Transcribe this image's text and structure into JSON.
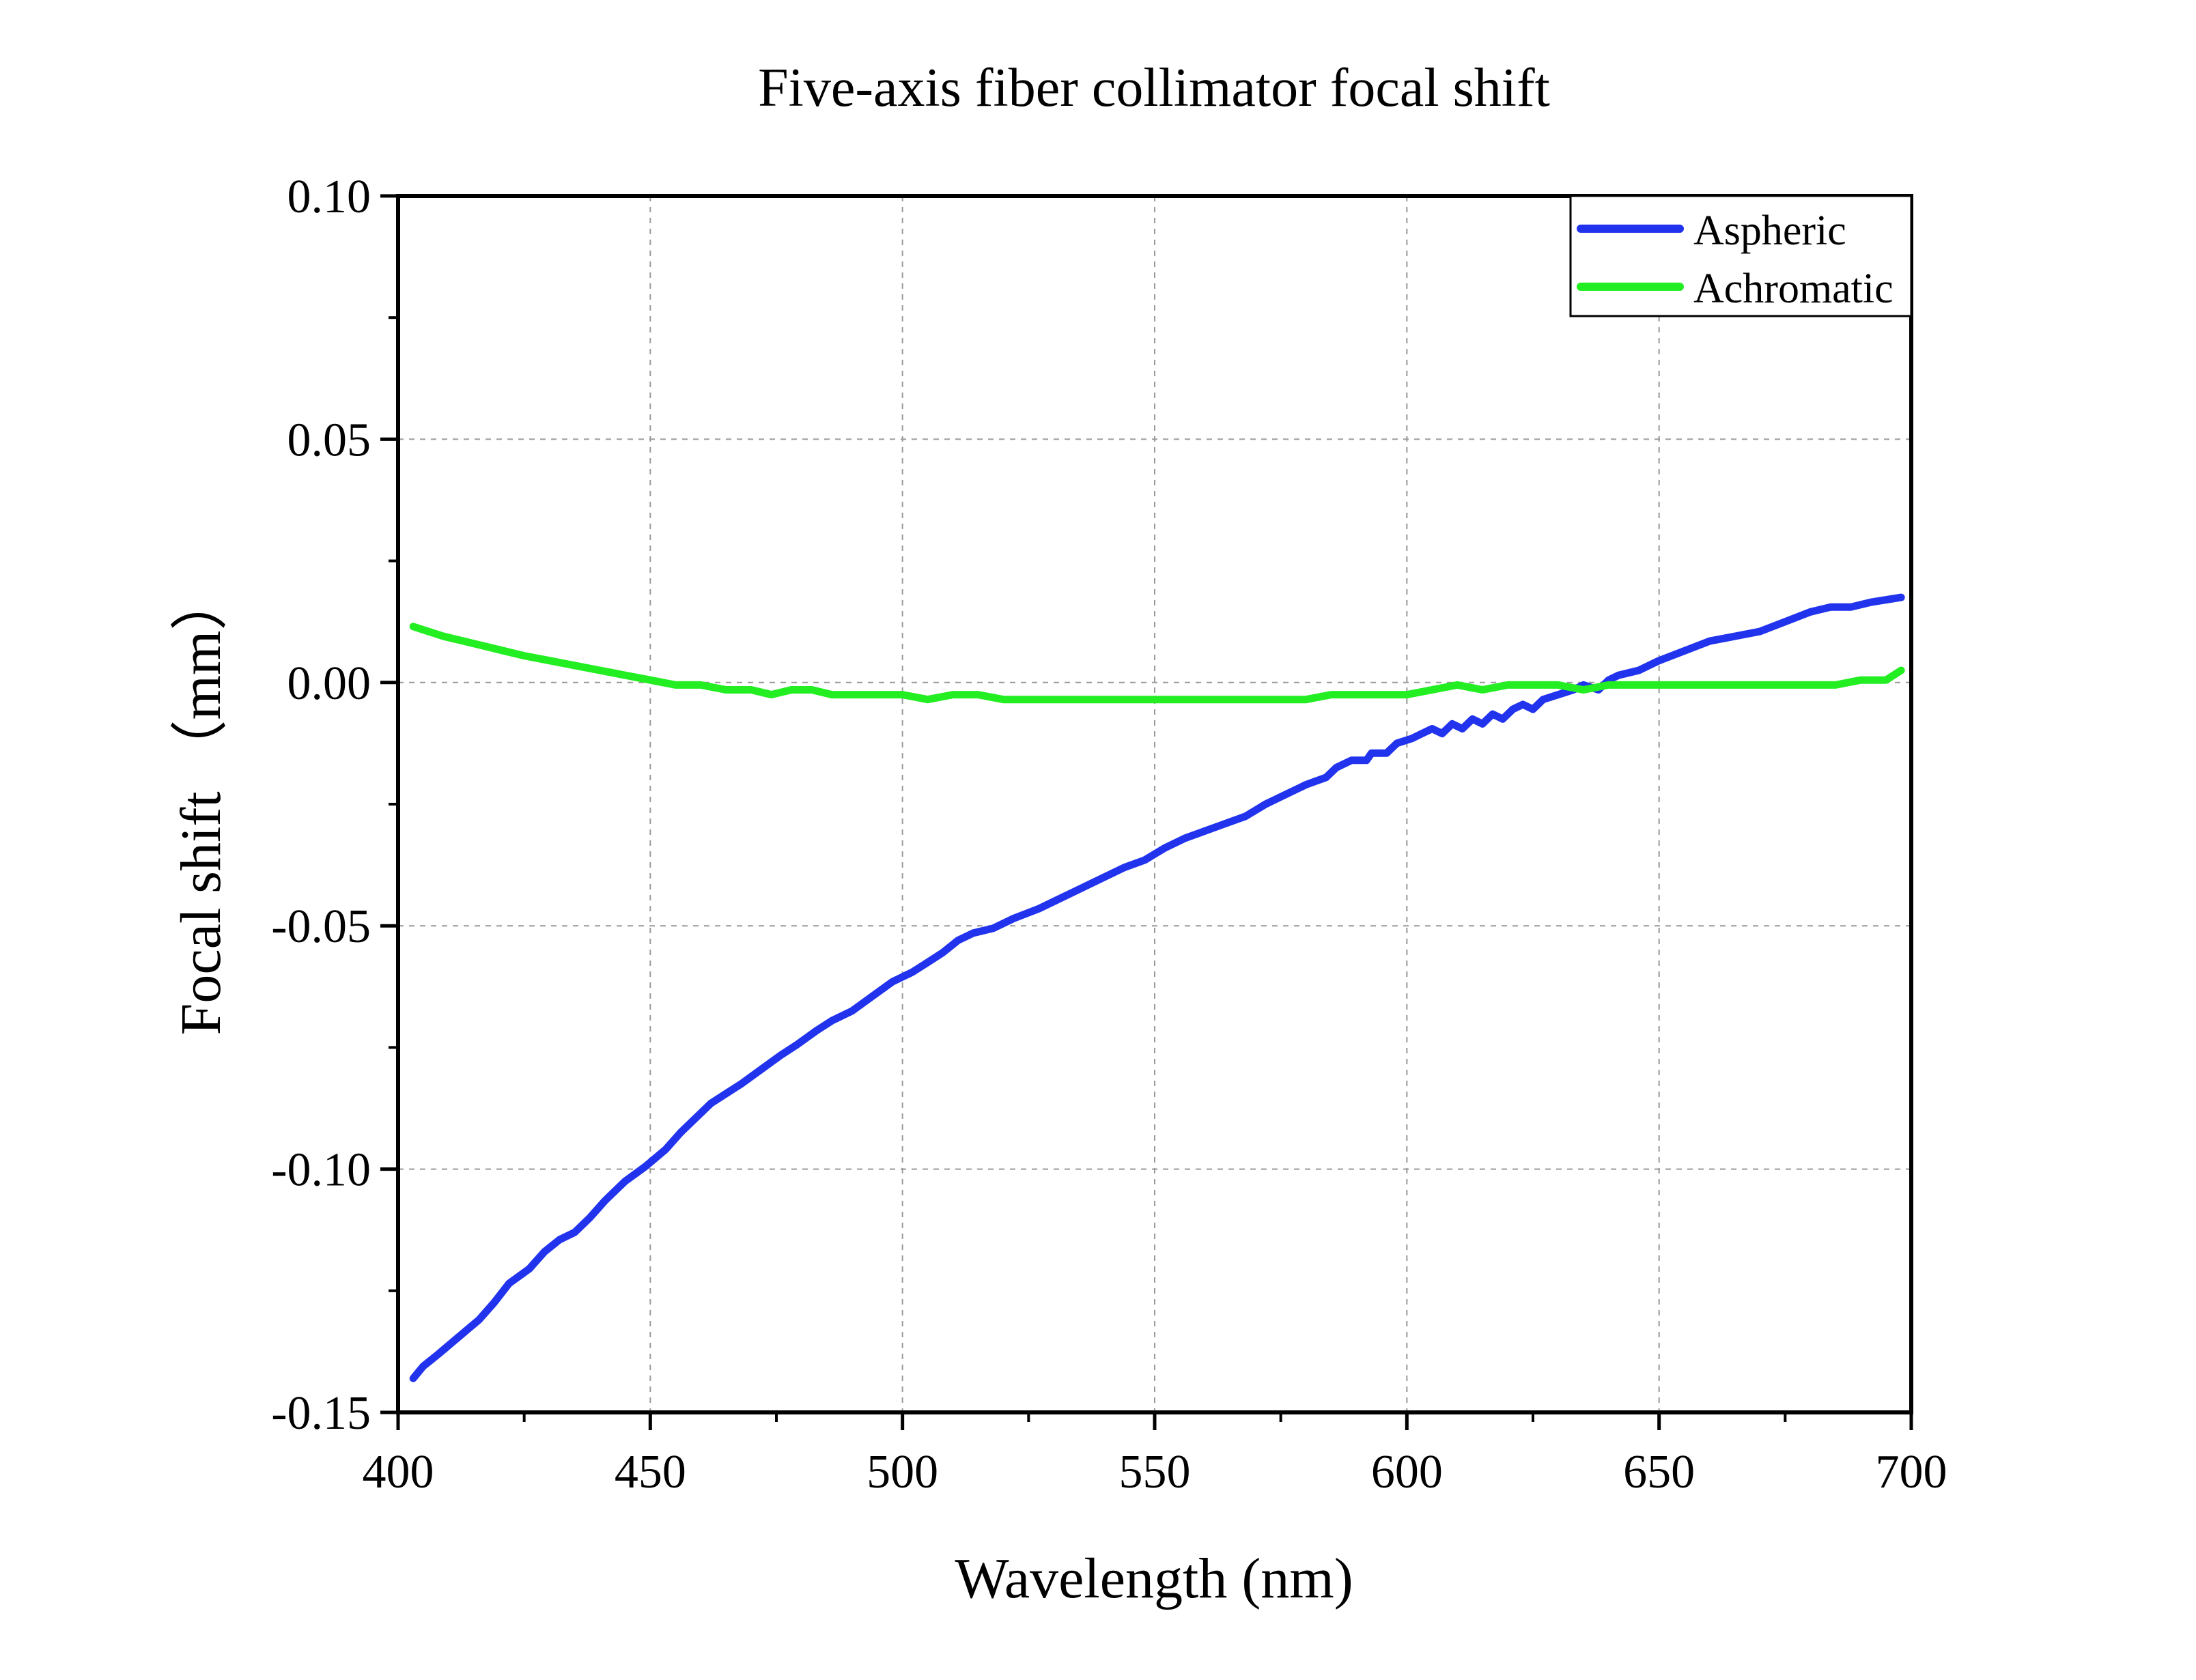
{
  "chart_data": {
    "type": "line",
    "title": "Five-axis fiber collimator focal shift",
    "xlabel": "Wavelength (nm)",
    "ylabel": "Focal shift （mm）",
    "xlim": [
      400,
      700
    ],
    "ylim": [
      -0.15,
      0.1
    ],
    "xticks": [
      400,
      450,
      500,
      550,
      600,
      650,
      700
    ],
    "xtick_labels": [
      "400",
      "450",
      "500",
      "550",
      "600",
      "650",
      "700"
    ],
    "yticks": [
      -0.15,
      -0.1,
      -0.05,
      0.0,
      0.05,
      0.1
    ],
    "ytick_labels": [
      "-0.15",
      "-0.10",
      "-0.05",
      "0.00",
      "0.05",
      "0.10"
    ],
    "grid": true,
    "legend_position": "top-right",
    "series": [
      {
        "name": "Aspheric",
        "color": "#2233ee",
        "x": [
          403,
          405,
          408,
          412,
          416,
          419,
          422,
          426,
          429,
          432,
          435,
          438,
          441,
          445,
          449,
          453,
          456,
          459,
          462,
          465,
          468,
          472,
          476,
          479,
          483,
          486,
          490,
          494,
          498,
          502,
          505,
          508,
          511,
          514,
          518,
          522,
          527,
          531,
          536,
          540,
          544,
          548,
          552,
          556,
          560,
          564,
          568,
          572,
          576,
          580,
          584,
          586,
          589,
          592,
          593,
          596,
          598,
          601,
          603,
          605,
          607,
          609,
          611,
          613,
          615,
          617,
          619,
          621,
          623,
          625,
          627,
          630,
          633,
          635,
          638,
          640,
          642,
          646,
          650,
          655,
          660,
          665,
          670,
          675,
          680,
          684,
          688,
          692,
          698
        ],
        "values": [
          -0.143,
          -0.1405,
          -0.138,
          -0.1345,
          -0.131,
          -0.1275,
          -0.1235,
          -0.1205,
          -0.117,
          -0.1145,
          -0.113,
          -0.11,
          -0.1065,
          -0.1025,
          -0.0995,
          -0.096,
          -0.0925,
          -0.0895,
          -0.0865,
          -0.0845,
          -0.0825,
          -0.0795,
          -0.0765,
          -0.0745,
          -0.0715,
          -0.0695,
          -0.0675,
          -0.0645,
          -0.0615,
          -0.0595,
          -0.0575,
          -0.0555,
          -0.053,
          -0.0515,
          -0.0505,
          -0.0485,
          -0.0465,
          -0.0445,
          -0.042,
          -0.04,
          -0.038,
          -0.0365,
          -0.034,
          -0.032,
          -0.0305,
          -0.029,
          -0.0275,
          -0.025,
          -0.023,
          -0.021,
          -0.0195,
          -0.0175,
          -0.016,
          -0.016,
          -0.0145,
          -0.0145,
          -0.0125,
          -0.0115,
          -0.0105,
          -0.0095,
          -0.0105,
          -0.0085,
          -0.0095,
          -0.0075,
          -0.0085,
          -0.0065,
          -0.0075,
          -0.0055,
          -0.0045,
          -0.0055,
          -0.0035,
          -0.0025,
          -0.0015,
          -0.0005,
          -0.0015,
          0.0005,
          0.0015,
          0.0025,
          0.0045,
          0.0065,
          0.0085,
          0.0095,
          0.0105,
          0.0125,
          0.0145,
          0.0155,
          0.0155,
          0.0165,
          0.0175
        ]
      },
      {
        "name": "Achromatic",
        "color": "#22ee22",
        "x": [
          403,
          406,
          409,
          413,
          417,
          421,
          425,
          430,
          435,
          440,
          445,
          450,
          455,
          460,
          465,
          470,
          474,
          478,
          482,
          486,
          490,
          495,
          500,
          505,
          510,
          515,
          520,
          530,
          540,
          550,
          560,
          570,
          580,
          585,
          590,
          595,
          600,
          605,
          610,
          615,
          620,
          625,
          630,
          635,
          640,
          650,
          660,
          670,
          680,
          685,
          690,
          695,
          698
        ],
        "values": [
          0.0115,
          0.0105,
          0.0095,
          0.0085,
          0.0075,
          0.0065,
          0.0055,
          0.0045,
          0.0035,
          0.0025,
          0.0015,
          0.0005,
          -0.0005,
          -0.0005,
          -0.0015,
          -0.0015,
          -0.0025,
          -0.0015,
          -0.0015,
          -0.0025,
          -0.0025,
          -0.0025,
          -0.0025,
          -0.0035,
          -0.0025,
          -0.0025,
          -0.0035,
          -0.0035,
          -0.0035,
          -0.0035,
          -0.0035,
          -0.0035,
          -0.0035,
          -0.0025,
          -0.0025,
          -0.0025,
          -0.0025,
          -0.0015,
          -0.0005,
          -0.0015,
          -0.0005,
          -0.0005,
          -0.0005,
          -0.0015,
          -0.0005,
          -0.0005,
          -0.0005,
          -0.0005,
          -0.0005,
          -0.0005,
          0.0005,
          0.0005,
          0.0025
        ]
      }
    ]
  }
}
